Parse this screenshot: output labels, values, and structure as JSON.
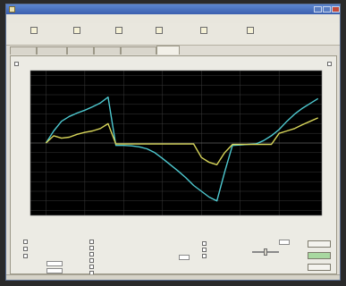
{
  "window": {
    "title": ""
  },
  "menu": [
    "",
    "",
    "",
    ""
  ],
  "toolbar": [
    {
      "icon": "file-icon",
      "label": ""
    },
    {
      "icon": "print-icon",
      "label": ""
    },
    {
      "icon": "save-icon",
      "label": ""
    },
    {
      "icon": "export-icon",
      "label": ""
    },
    {
      "icon": "settings-icon",
      "label": ""
    },
    {
      "icon": "compare-icon",
      "label": ""
    }
  ],
  "tabs": [
    "",
    "",
    "",
    "",
    "",
    ""
  ],
  "active_tab": 5,
  "legend": {
    "left": "",
    "right": ""
  },
  "colors": {
    "plot_bg": "#000000",
    "grid": "#3a3a3a",
    "series_cyan": "#4ec9d0",
    "series_yellow": "#d8d65a",
    "titlebar": "#3a5fae"
  },
  "chart_data": {
    "type": "line",
    "title": "",
    "x": [
      0,
      10,
      20,
      30,
      40,
      50,
      60,
      70,
      80,
      90,
      100,
      110,
      120,
      130,
      140,
      150,
      160,
      170,
      180,
      190,
      200,
      210,
      220,
      230,
      240,
      250,
      260,
      270,
      280,
      290,
      300,
      310,
      320,
      330,
      340,
      350
    ],
    "xlim": [
      -20,
      355
    ],
    "ylim": [
      -150,
      150
    ],
    "x_ticks": [
      0,
      50,
      100,
      150,
      200,
      250,
      300
    ],
    "x_tick_labels": [
      "",
      "",
      "",
      "",
      "",
      "",
      ""
    ],
    "y_ticks": [
      140,
      120,
      100,
      80,
      60,
      40,
      20,
      0,
      -20,
      -40,
      -60,
      -80,
      -100,
      -120,
      -140
    ],
    "y_tick_labels": [
      "",
      "",
      "",
      "",
      "",
      "",
      "",
      "",
      "",
      "",
      "",
      "",
      "",
      "",
      ""
    ],
    "grid": true,
    "series": [
      {
        "color": "#4ec9d0",
        "values": [
          0,
          25,
          45,
          55,
          62,
          68,
          75,
          83,
          95,
          -5,
          -5,
          -6,
          -8,
          -12,
          -20,
          -32,
          -45,
          -58,
          -72,
          -88,
          -100,
          -112,
          -120,
          -60,
          -5,
          -4,
          -3,
          -2,
          5,
          15,
          28,
          45,
          60,
          72,
          82,
          92
        ]
      },
      {
        "color": "#d8d65a",
        "values": [
          0,
          15,
          10,
          12,
          18,
          22,
          25,
          30,
          40,
          -2,
          -2,
          -2,
          -2,
          -2,
          -2,
          -2,
          -2,
          -2,
          -2,
          -2,
          -30,
          -40,
          -45,
          -20,
          -3,
          -3,
          -3,
          -3,
          -3,
          -3,
          20,
          25,
          30,
          38,
          45,
          52
        ]
      }
    ]
  },
  "controls": {
    "checkboxes_left": [
      "",
      "",
      ""
    ],
    "checkboxes_mid": [
      "",
      "",
      "",
      "",
      "",
      ""
    ],
    "checkboxes_right": [
      "",
      "",
      ""
    ],
    "field_label_1": "",
    "field_value_1": "",
    "field_label_2": "",
    "field_value_2": "",
    "field_label_3": "",
    "field_value_3": "",
    "slider_label": "",
    "slider_value": ""
  },
  "buttons": {
    "b1": "",
    "b2": "",
    "b3": ""
  },
  "status": [
    "",
    "",
    "",
    "",
    ""
  ]
}
